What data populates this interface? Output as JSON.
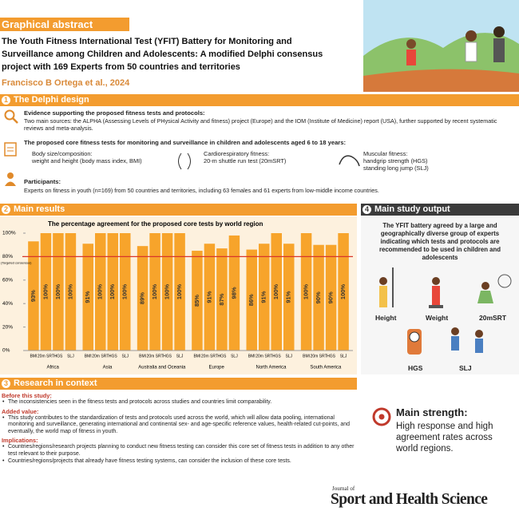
{
  "header": {
    "label": "Graphical abstract",
    "title_lines": [
      "The Youth Fitness International Test (YFIT) Battery for Monitoring and",
      "Surveillance among Children and Adolescents: A modified Delphi consensus",
      "project with 169 Experts from 50 countries and territories"
    ],
    "authors": "Francisco B Ortega et al., 2024"
  },
  "section1": {
    "number": "1",
    "title": "The Delphi design",
    "evidence_heading": "Evidence supporting the proposed fitness tests and protocols:",
    "evidence_text": "Two main sources: the ALPHA (Assessing Levels of PHysical Activity and fitness) project (Europe) and the IOM (Institute of Medicine) report (USA), further supported by recent systematic reviews and meta-analysis.",
    "tests_heading": "The proposed core fitness tests for monitoring and surveillance in children and adolescents aged 6 to 18 years:",
    "tests": [
      {
        "name": "Body size/composition:",
        "details": [
          "weight and height (body mass index, BMI)"
        ]
      },
      {
        "name": "Cardiorespiratory fitness:",
        "details": [
          "20-m shuttle run test (20mSRT)"
        ]
      },
      {
        "name": "Muscular fitness:",
        "details": [
          "handgrip strength (HGS)",
          "standing long jump (SLJ)"
        ]
      }
    ],
    "participants_heading": "Participants:",
    "participants_text": "Experts on fitness in youth (n=169) from 50 countries and territories, including 63 females and 61 experts from low-middle income countries."
  },
  "section2": {
    "number": "2",
    "title": "Main results",
    "chart": {
      "type": "bar",
      "title": "The percentage agreement for the proposed core tests by world region",
      "categories": [
        "Africa",
        "Asia",
        "Australia and Oceania",
        "Europe",
        "North America",
        "South America"
      ],
      "series": [
        {
          "name": "BMI",
          "color": "#f7a42b",
          "values": [
            93,
            91,
            89,
            85,
            86,
            100
          ],
          "value_labels": [
            "93%",
            "91%",
            "89%",
            "85%",
            "86%",
            "100%"
          ]
        },
        {
          "name": "20m SRT",
          "color": "#f7a42b",
          "values": [
            100,
            100,
            100,
            91,
            91,
            90
          ],
          "value_labels": [
            "100%",
            "100%",
            "100%",
            "91%",
            "91%",
            "90%"
          ]
        },
        {
          "name": "HGS",
          "color": "#f7a42b",
          "values": [
            100,
            100,
            100,
            87,
            100,
            90
          ],
          "value_labels": [
            "100%",
            "100%",
            "100%",
            "87%",
            "100%",
            "90%"
          ]
        },
        {
          "name": "SLJ",
          "color": "#f7a42b",
          "values": [
            100,
            100,
            100,
            98,
            91,
            100
          ],
          "value_labels": [
            "100%",
            "100%",
            "100%",
            "98%",
            "91%",
            "100%"
          ]
        }
      ],
      "ylim": [
        0,
        100
      ],
      "yticks": [
        {
          "value": 0,
          "label": "0%"
        },
        {
          "value": 20,
          "label": "20%"
        },
        {
          "value": 40,
          "label": "40%"
        },
        {
          "value": 60,
          "label": "60%"
        },
        {
          "value": 80,
          "label": "80%"
        },
        {
          "value": 100,
          "label": "100%"
        }
      ],
      "reference_line": {
        "value": 80,
        "label": "(Targeted consensus)",
        "color": "#d9372a"
      },
      "grid": false
    }
  },
  "section3": {
    "number": "3",
    "title": "Research in context",
    "blocks": [
      {
        "heading": "Before this study:",
        "bullets": [
          "The inconsistencies seen in the fitness tests and protocols across studies and countries limit comparability."
        ]
      },
      {
        "heading": "Added value:",
        "bullets": [
          "This study contributes to the standardization of tests and protocols used across the world, which will allow data pooling, international monitoring and surveillance, generating international and continental sex- and age-specific reference values, health-related cut-points, and eventually, the world map of fitness in youth."
        ]
      },
      {
        "heading": "Implications:",
        "bullets": [
          "Countries/regions/research projects planning to conduct new fitness testing can consider this core set of fitness tests in addition to any other test relevant to their purpose.",
          "Countries/regions/projects that already have fitness testing systems, can consider the inclusion of these core tests."
        ]
      }
    ]
  },
  "section4": {
    "number": "4",
    "title": "Main study output",
    "text": "The YFIT battery agreed by a large and geographically diverse group of experts indicating which tests and protocols are recommended to be used in children and adolescents",
    "icons": [
      "Height",
      "Weight",
      "20mSRT",
      "HGS",
      "SLJ"
    ]
  },
  "main_strength": {
    "heading": "Main strength:",
    "text": "High response and high agreement rates across world regions."
  },
  "journal": {
    "prefix": "Journal of",
    "name": "Sport and Health Science"
  }
}
